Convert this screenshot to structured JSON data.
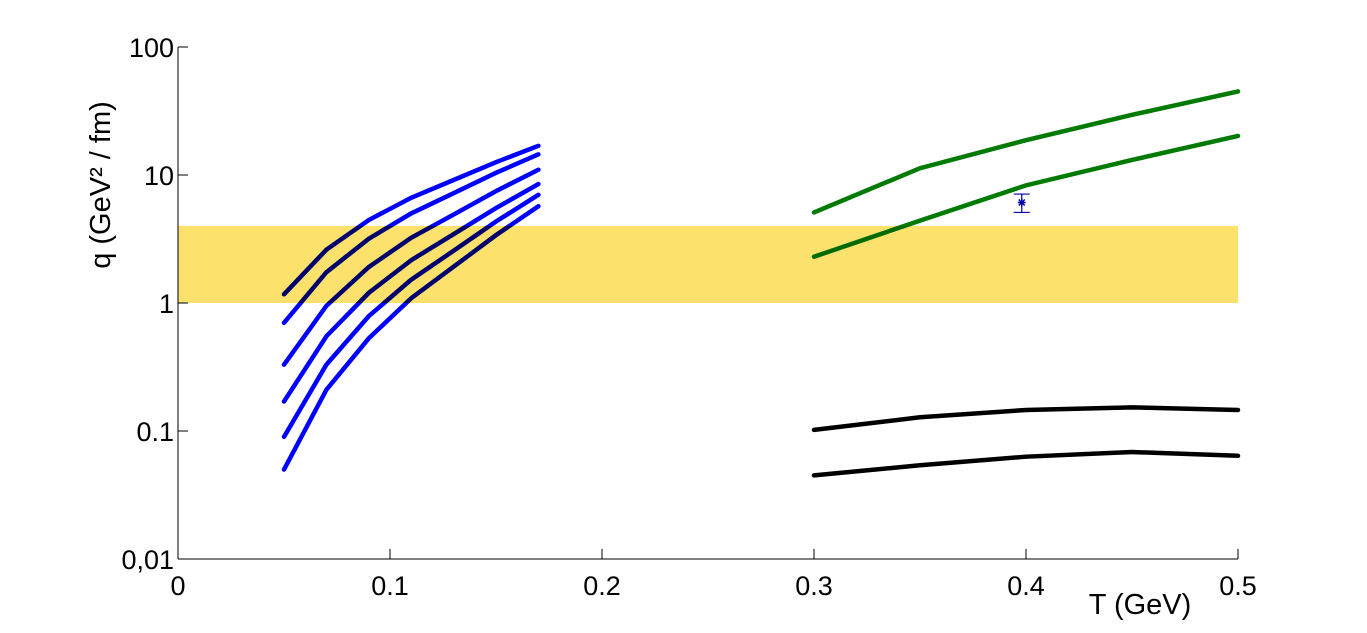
{
  "chart_data": {
    "type": "line",
    "xlabel": "T (GeV)",
    "ylabel": "q (GeV² / fm)",
    "xlim": [
      0,
      0.5
    ],
    "xticks": [
      0,
      0.1,
      0.2,
      0.3,
      0.4,
      0.5
    ],
    "ylim": [
      0.01,
      100
    ],
    "yticks": [
      {
        "value": 0.01,
        "label": "0,01"
      },
      0.1,
      1,
      10,
      100
    ],
    "log_y": true,
    "band": {
      "xlim": [
        0,
        0.5
      ],
      "ylim": [
        1,
        4
      ],
      "color": "#fde16d"
    },
    "series": [
      {
        "color": "#0000ff",
        "x": [
          0.05,
          0.07,
          0.09,
          0.11,
          0.13,
          0.15,
          0.17
        ],
        "values": [
          1.17,
          2.61,
          4.45,
          6.64,
          9.14,
          12.6,
          16.9
        ]
      },
      {
        "color": "#0000ff",
        "x": [
          0.05,
          0.07,
          0.09,
          0.11,
          0.13,
          0.15,
          0.17
        ],
        "values": [
          0.7,
          1.74,
          3.18,
          5.01,
          7.21,
          10.4,
          14.5
        ]
      },
      {
        "color": "#0000ff",
        "x": [
          0.05,
          0.07,
          0.09,
          0.11,
          0.13,
          0.15,
          0.17
        ],
        "values": [
          0.33,
          0.95,
          1.91,
          3.23,
          4.91,
          7.48,
          11
        ]
      },
      {
        "color": "#0000ff",
        "x": [
          0.05,
          0.07,
          0.09,
          0.11,
          0.13,
          0.15,
          0.17
        ],
        "values": [
          0.17,
          0.55,
          1.2,
          2.16,
          3.45,
          5.52,
          8.5
        ]
      },
      {
        "color": "#0000ff",
        "x": [
          0.05,
          0.07,
          0.09,
          0.11,
          0.13,
          0.15,
          0.17
        ],
        "values": [
          0.09,
          0.33,
          0.79,
          1.52,
          2.56,
          4.33,
          7
        ]
      },
      {
        "color": "#0000ff",
        "x": [
          0.05,
          0.07,
          0.09,
          0.11,
          0.13,
          0.15,
          0.17
        ],
        "values": [
          0.05,
          0.21,
          0.53,
          1.09,
          1.92,
          3.39,
          5.7
        ]
      },
      {
        "color": "#007a00",
        "x": [
          0.3,
          0.35,
          0.4,
          0.45,
          0.5
        ],
        "values": [
          5.1,
          11.3,
          18.7,
          29.5,
          45
        ]
      },
      {
        "color": "#007a00",
        "x": [
          0.3,
          0.35,
          0.4,
          0.45,
          0.5
        ],
        "values": [
          2.3,
          4.4,
          8.3,
          13.1,
          20.2
        ]
      },
      {
        "color": "#000000",
        "x": [
          0.3,
          0.35,
          0.4,
          0.45,
          0.5
        ],
        "values": [
          0.102,
          0.128,
          0.146,
          0.153,
          0.146
        ]
      },
      {
        "color": "#000000",
        "x": [
          0.3,
          0.35,
          0.4,
          0.45,
          0.5
        ],
        "values": [
          0.045,
          0.054,
          0.063,
          0.0685,
          0.064
        ]
      }
    ],
    "point": {
      "x": 0.398,
      "y": 6.1,
      "error": 1.0,
      "color": "#0000aa"
    }
  }
}
